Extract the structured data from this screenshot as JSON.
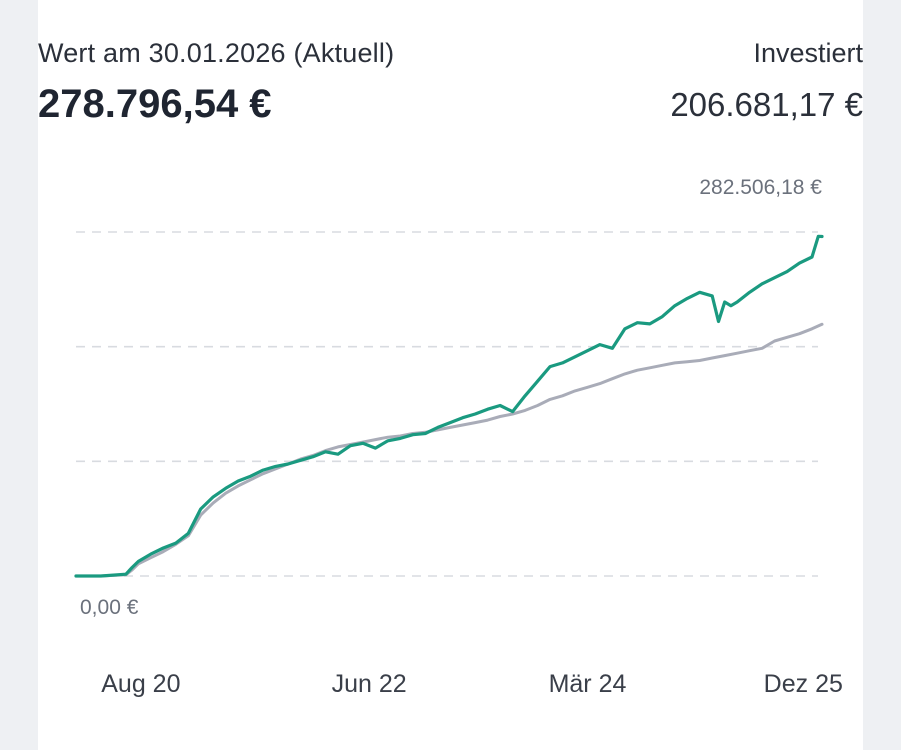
{
  "header": {
    "value_label": "Wert am 30.01.2026 (Aktuell)",
    "value_amount": "278.796,54 €",
    "invested_label": "Investiert",
    "invested_amount": "206.681,17 €"
  },
  "chart_data": {
    "type": "line",
    "title": "",
    "xlabel": "",
    "ylabel": "",
    "ylim": [
      0,
      282506.18
    ],
    "y_tick_labels": {
      "max": "282.506,18 €",
      "min": "0,00 €"
    },
    "gridlines_y": [
      0,
      94168.73,
      188337.45,
      282506.18
    ],
    "x_ticks": [
      {
        "label": "Aug 20",
        "x": 2020.62
      },
      {
        "label": "Jun 22",
        "x": 2022.45
      },
      {
        "label": "Mär 24",
        "x": 2024.2
      },
      {
        "label": "Dez 25",
        "x": 2025.93
      }
    ],
    "xlim": [
      2020.1,
      2026.08
    ],
    "grid": true,
    "legend": "none",
    "colors": {
      "portfolio": "#1a9a80",
      "invested": "#a9acb8",
      "grid": "#d8dbe0"
    },
    "series": [
      {
        "key": "portfolio",
        "x": [
          2020.1,
          2020.3,
          2020.5,
          2020.55,
          2020.6,
          2020.7,
          2020.8,
          2020.9,
          2021.0,
          2021.1,
          2021.2,
          2021.3,
          2021.4,
          2021.5,
          2021.6,
          2021.7,
          2021.8,
          2021.9,
          2022.0,
          2022.1,
          2022.2,
          2022.3,
          2022.4,
          2022.5,
          2022.6,
          2022.7,
          2022.8,
          2022.9,
          2023.0,
          2023.1,
          2023.2,
          2023.3,
          2023.4,
          2023.5,
          2023.6,
          2023.7,
          2023.8,
          2023.9,
          2024.0,
          2024.1,
          2024.2,
          2024.3,
          2024.4,
          2024.5,
          2024.6,
          2024.7,
          2024.8,
          2024.9,
          2025.0,
          2025.1,
          2025.2,
          2025.25,
          2025.3,
          2025.35,
          2025.4,
          2025.5,
          2025.6,
          2025.7,
          2025.8,
          2025.9,
          2026.0,
          2026.05,
          2026.08
        ],
        "y": [
          0,
          0,
          1500,
          7000,
          12000,
          18000,
          23000,
          27000,
          35000,
          55000,
          65000,
          72000,
          78000,
          82000,
          87000,
          90000,
          92000,
          95000,
          98000,
          102000,
          100000,
          107000,
          109000,
          105000,
          111000,
          113000,
          116000,
          117000,
          122000,
          126000,
          130000,
          133000,
          137000,
          140000,
          135000,
          148000,
          160000,
          172000,
          175000,
          180000,
          185000,
          190000,
          187000,
          203000,
          208000,
          207000,
          213000,
          222000,
          228000,
          233000,
          230000,
          209000,
          225000,
          222000,
          225000,
          233000,
          240000,
          245000,
          250000,
          257000,
          262000,
          279000,
          278796.54
        ]
      },
      {
        "key": "invested",
        "x": [
          2020.1,
          2020.3,
          2020.5,
          2020.55,
          2020.6,
          2020.7,
          2020.8,
          2020.9,
          2021.0,
          2021.1,
          2021.2,
          2021.3,
          2021.4,
          2021.5,
          2021.6,
          2021.7,
          2021.8,
          2021.9,
          2022.0,
          2022.1,
          2022.2,
          2022.3,
          2022.4,
          2022.5,
          2022.6,
          2022.7,
          2022.8,
          2022.9,
          2023.0,
          2023.1,
          2023.2,
          2023.3,
          2023.4,
          2023.5,
          2023.6,
          2023.7,
          2023.8,
          2023.9,
          2024.0,
          2024.1,
          2024.2,
          2024.3,
          2024.4,
          2024.5,
          2024.6,
          2024.7,
          2024.8,
          2024.9,
          2025.0,
          2025.1,
          2025.2,
          2025.3,
          2025.4,
          2025.5,
          2025.6,
          2025.7,
          2025.8,
          2025.9,
          2026.0,
          2026.08
        ],
        "y": [
          0,
          0,
          1000,
          5000,
          10000,
          15000,
          20000,
          26000,
          33000,
          50000,
          60000,
          68000,
          74000,
          79000,
          84000,
          88000,
          92000,
          96000,
          99000,
          103000,
          106000,
          108000,
          110000,
          112000,
          114000,
          115000,
          117000,
          118000,
          120000,
          122000,
          124000,
          126000,
          128000,
          131000,
          133000,
          136000,
          140000,
          145000,
          148000,
          152000,
          155000,
          158000,
          162000,
          166000,
          169000,
          171000,
          173000,
          175000,
          176000,
          177000,
          179000,
          181000,
          183000,
          185000,
          187000,
          193000,
          196000,
          199000,
          203000,
          206681.17
        ]
      }
    ]
  }
}
